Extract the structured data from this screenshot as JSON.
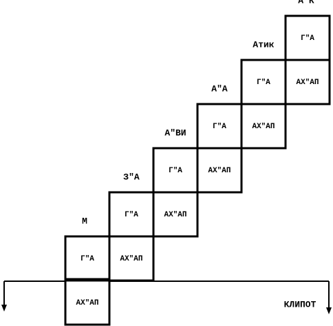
{
  "columns": [
    {
      "label": "М",
      "top": "Г\"А",
      "bottom": "АХ\"АП"
    },
    {
      "label": "З\"А",
      "top": "Г\"А",
      "bottom": "АХ\"АП"
    },
    {
      "label": "А\"ВИ",
      "top": "Г\"А",
      "bottom": "АХ\"АП"
    },
    {
      "label": "А\"А",
      "top": "Г\"А",
      "bottom": "АХ\"АП"
    },
    {
      "label": "Атик",
      "top": "Г\"А",
      "bottom": "АХ\"АП"
    },
    {
      "label": "А\"К",
      "top": "Г\"А",
      "bottom": "АХ\"АП"
    }
  ],
  "baseline_label": "КЛИПОТ"
}
